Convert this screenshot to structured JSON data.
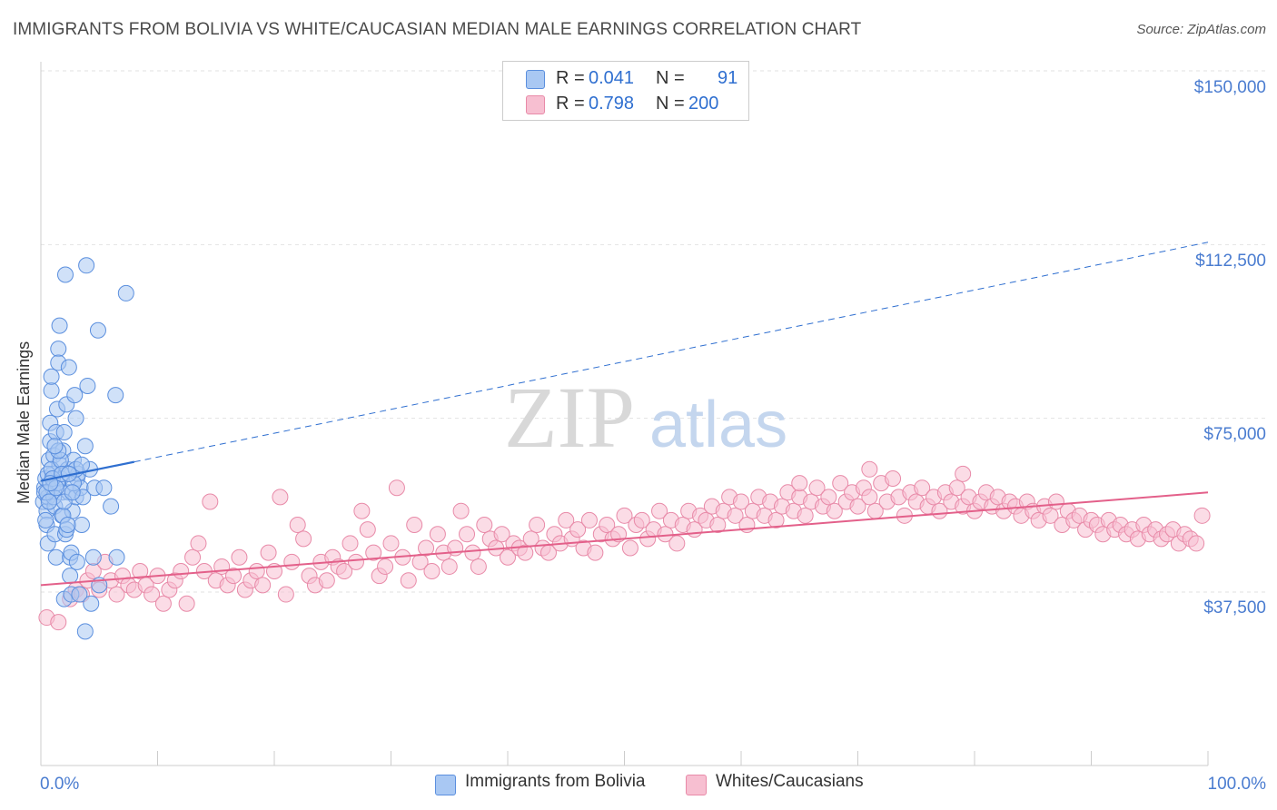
{
  "title": "IMMIGRANTS FROM BOLIVIA VS WHITE/CAUCASIAN MEDIAN MALE EARNINGS CORRELATION CHART",
  "source": "Source: ZipAtlas.com",
  "watermark": {
    "zip": "ZIP",
    "atlas": "atlas"
  },
  "legend": {
    "r_label": "R =",
    "n_label": "N =",
    "series": [
      {
        "r": "0.041",
        "n": "91",
        "color": "#a9c8f3",
        "edge": "#5b8fde"
      },
      {
        "r": "0.798",
        "n": "200",
        "color": "#f7bfd1",
        "edge": "#e88aa8"
      }
    ]
  },
  "bottom_legend": [
    "Immigrants from Bolivia",
    "Whites/Caucasians"
  ],
  "colors": {
    "blue": "#4a7cd0",
    "blue_line": "#2f6fd0",
    "pink_line": "#e3608a",
    "grid": "#e2e2e2",
    "axis": "#cccccc"
  },
  "chart_data": {
    "type": "scatter",
    "title": "IMMIGRANTS FROM BOLIVIA VS WHITE/CAUCASIAN MEDIAN MALE EARNINGS CORRELATION CHART",
    "xlabel": "",
    "ylabel": "Median Male Earnings",
    "xlim": [
      0,
      100
    ],
    "ylim": [
      15000,
      155000
    ],
    "x_tick_labels": [
      "0.0%",
      "100.0%"
    ],
    "y_ticks": [
      37500,
      75000,
      112500,
      150000
    ],
    "y_tick_labels": [
      "$37,500",
      "$75,000",
      "$112,500",
      "$150,000"
    ],
    "series": [
      {
        "name": "Immigrants from Bolivia",
        "r": 0.041,
        "n": 91,
        "trend": {
          "x0": 0,
          "y0": 61500,
          "x_solid_end": 8,
          "y_solid_end": 65600,
          "x1": 100,
          "y1": 113000
        },
        "points": [
          [
            0.2,
            57000
          ],
          [
            0.3,
            60000
          ],
          [
            0.4,
            62000
          ],
          [
            0.5,
            55000
          ],
          [
            0.5,
            52000
          ],
          [
            0.6,
            48000
          ],
          [
            0.6,
            58000
          ],
          [
            0.7,
            66000
          ],
          [
            0.8,
            70000
          ],
          [
            0.8,
            74000
          ],
          [
            0.9,
            81000
          ],
          [
            0.9,
            84000
          ],
          [
            1.0,
            60000
          ],
          [
            1.0,
            63000
          ],
          [
            1.1,
            67000
          ],
          [
            1.2,
            56000
          ],
          [
            1.2,
            50000
          ],
          [
            1.3,
            45000
          ],
          [
            1.3,
            72000
          ],
          [
            1.4,
            77000
          ],
          [
            1.5,
            90000
          ],
          [
            1.5,
            87000
          ],
          [
            1.6,
            95000
          ],
          [
            1.6,
            65000
          ],
          [
            1.7,
            62000
          ],
          [
            1.8,
            59000
          ],
          [
            1.8,
            54000
          ],
          [
            1.9,
            68000
          ],
          [
            2.0,
            72000
          ],
          [
            2.0,
            36000
          ],
          [
            2.1,
            50000
          ],
          [
            2.1,
            106000
          ],
          [
            2.2,
            78000
          ],
          [
            2.3,
            64000
          ],
          [
            2.4,
            59000
          ],
          [
            2.4,
            86000
          ],
          [
            2.5,
            45000
          ],
          [
            2.5,
            41000
          ],
          [
            2.6,
            37000
          ],
          [
            2.7,
            55000
          ],
          [
            2.8,
            66000
          ],
          [
            2.9,
            80000
          ],
          [
            3.0,
            75000
          ],
          [
            3.0,
            58000
          ],
          [
            3.1,
            62000
          ],
          [
            3.2,
            63000
          ],
          [
            3.3,
            37000
          ],
          [
            3.4,
            60000
          ],
          [
            3.5,
            52000
          ],
          [
            3.6,
            58000
          ],
          [
            3.8,
            29000
          ],
          [
            3.8,
            69000
          ],
          [
            3.9,
            108000
          ],
          [
            4.0,
            82000
          ],
          [
            4.2,
            64000
          ],
          [
            4.3,
            35000
          ],
          [
            4.5,
            45000
          ],
          [
            4.6,
            60000
          ],
          [
            4.9,
            94000
          ],
          [
            5.0,
            39000
          ],
          [
            5.4,
            60000
          ],
          [
            6.0,
            56000
          ],
          [
            6.4,
            80000
          ],
          [
            7.3,
            102000
          ],
          [
            0.3,
            59000
          ],
          [
            0.4,
            53000
          ],
          [
            0.6,
            63000
          ],
          [
            0.9,
            64000
          ],
          [
            1.1,
            58000
          ],
          [
            1.4,
            61000
          ],
          [
            1.7,
            66000
          ],
          [
            1.9,
            54000
          ],
          [
            2.2,
            51000
          ],
          [
            2.6,
            46000
          ],
          [
            2.8,
            61000
          ],
          [
            3.1,
            44000
          ],
          [
            0.5,
            59000
          ],
          [
            0.7,
            57000
          ],
          [
            1.0,
            62000
          ],
          [
            1.3,
            60000
          ],
          [
            1.5,
            68000
          ],
          [
            1.8,
            63000
          ],
          [
            2.0,
            57000
          ],
          [
            2.3,
            52000
          ],
          [
            2.7,
            59000
          ],
          [
            3.0,
            64000
          ],
          [
            3.5,
            65000
          ],
          [
            6.5,
            45000
          ],
          [
            1.2,
            69000
          ],
          [
            2.4,
            63000
          ],
          [
            0.8,
            61000
          ]
        ]
      },
      {
        "name": "Whites/Caucasians",
        "r": 0.798,
        "n": 200,
        "trend": {
          "x0": 0,
          "y0": 39000,
          "x1": 100,
          "y1": 59000
        },
        "points": [
          [
            0.5,
            32000
          ],
          [
            1.5,
            31000
          ],
          [
            2.5,
            36000
          ],
          [
            3.0,
            38000
          ],
          [
            3.5,
            37000
          ],
          [
            4.0,
            40000
          ],
          [
            4.5,
            42000
          ],
          [
            5.0,
            38000
          ],
          [
            5.5,
            44000
          ],
          [
            6.0,
            40000
          ],
          [
            6.5,
            37000
          ],
          [
            7.0,
            41000
          ],
          [
            7.5,
            39000
          ],
          [
            8.0,
            38000
          ],
          [
            8.5,
            42000
          ],
          [
            9.0,
            39000
          ],
          [
            9.5,
            37000
          ],
          [
            10.0,
            41000
          ],
          [
            10.5,
            35000
          ],
          [
            11.0,
            38000
          ],
          [
            11.5,
            40000
          ],
          [
            12.0,
            42000
          ],
          [
            12.5,
            35000
          ],
          [
            13.0,
            45000
          ],
          [
            13.5,
            48000
          ],
          [
            14.0,
            42000
          ],
          [
            14.5,
            57000
          ],
          [
            15.0,
            40000
          ],
          [
            15.5,
            43000
          ],
          [
            16.0,
            39000
          ],
          [
            16.5,
            41000
          ],
          [
            17.0,
            45000
          ],
          [
            17.5,
            38000
          ],
          [
            18.0,
            40000
          ],
          [
            18.5,
            42000
          ],
          [
            19.0,
            39000
          ],
          [
            19.5,
            46000
          ],
          [
            20.0,
            42000
          ],
          [
            20.5,
            58000
          ],
          [
            21.0,
            37000
          ],
          [
            21.5,
            44000
          ],
          [
            22.0,
            52000
          ],
          [
            22.5,
            49000
          ],
          [
            23.0,
            41000
          ],
          [
            23.5,
            39000
          ],
          [
            24.0,
            44000
          ],
          [
            24.5,
            40000
          ],
          [
            25.0,
            45000
          ],
          [
            25.5,
            43000
          ],
          [
            26.0,
            42000
          ],
          [
            26.5,
            48000
          ],
          [
            27.0,
            44000
          ],
          [
            27.5,
            55000
          ],
          [
            28.0,
            51000
          ],
          [
            28.5,
            46000
          ],
          [
            29.0,
            41000
          ],
          [
            29.5,
            43000
          ],
          [
            30.0,
            48000
          ],
          [
            30.5,
            60000
          ],
          [
            31.0,
            45000
          ],
          [
            31.5,
            40000
          ],
          [
            32.0,
            52000
          ],
          [
            32.5,
            44000
          ],
          [
            33.0,
            47000
          ],
          [
            33.5,
            42000
          ],
          [
            34.0,
            50000
          ],
          [
            34.5,
            46000
          ],
          [
            35.0,
            43000
          ],
          [
            35.5,
            47000
          ],
          [
            36.0,
            55000
          ],
          [
            36.5,
            50000
          ],
          [
            37.0,
            46000
          ],
          [
            37.5,
            43000
          ],
          [
            38.0,
            52000
          ],
          [
            38.5,
            49000
          ],
          [
            39.0,
            47000
          ],
          [
            39.5,
            50000
          ],
          [
            40.0,
            45000
          ],
          [
            40.5,
            48000
          ],
          [
            41.0,
            47000
          ],
          [
            41.5,
            46000
          ],
          [
            42.0,
            49000
          ],
          [
            42.5,
            52000
          ],
          [
            43.0,
            47000
          ],
          [
            43.5,
            46000
          ],
          [
            44.0,
            50000
          ],
          [
            44.5,
            48000
          ],
          [
            45.0,
            53000
          ],
          [
            45.5,
            49000
          ],
          [
            46.0,
            51000
          ],
          [
            46.5,
            47000
          ],
          [
            47.0,
            53000
          ],
          [
            47.5,
            46000
          ],
          [
            48.0,
            50000
          ],
          [
            48.5,
            52000
          ],
          [
            49.0,
            49000
          ],
          [
            49.5,
            50000
          ],
          [
            50.0,
            54000
          ],
          [
            50.5,
            47000
          ],
          [
            51.0,
            52000
          ],
          [
            51.5,
            53000
          ],
          [
            52.0,
            49000
          ],
          [
            52.5,
            51000
          ],
          [
            53.0,
            55000
          ],
          [
            53.5,
            50000
          ],
          [
            54.0,
            53000
          ],
          [
            54.5,
            48000
          ],
          [
            55.0,
            52000
          ],
          [
            55.5,
            55000
          ],
          [
            56.0,
            51000
          ],
          [
            56.5,
            54000
          ],
          [
            57.0,
            53000
          ],
          [
            57.5,
            56000
          ],
          [
            58.0,
            52000
          ],
          [
            58.5,
            55000
          ],
          [
            59.0,
            58000
          ],
          [
            59.5,
            54000
          ],
          [
            60.0,
            57000
          ],
          [
            60.5,
            52000
          ],
          [
            61.0,
            55000
          ],
          [
            61.5,
            58000
          ],
          [
            62.0,
            54000
          ],
          [
            62.5,
            57000
          ],
          [
            63.0,
            53000
          ],
          [
            63.5,
            56000
          ],
          [
            64.0,
            59000
          ],
          [
            64.5,
            55000
          ],
          [
            65.0,
            58000
          ],
          [
            65.5,
            54000
          ],
          [
            66.0,
            57000
          ],
          [
            66.5,
            60000
          ],
          [
            67.0,
            56000
          ],
          [
            67.5,
            58000
          ],
          [
            68.0,
            55000
          ],
          [
            68.5,
            61000
          ],
          [
            69.0,
            57000
          ],
          [
            69.5,
            59000
          ],
          [
            70.0,
            56000
          ],
          [
            70.5,
            60000
          ],
          [
            71.0,
            58000
          ],
          [
            71.5,
            55000
          ],
          [
            72.0,
            61000
          ],
          [
            72.5,
            57000
          ],
          [
            73.0,
            62000
          ],
          [
            73.5,
            58000
          ],
          [
            74.0,
            54000
          ],
          [
            74.5,
            59000
          ],
          [
            75.0,
            57000
          ],
          [
            75.5,
            60000
          ],
          [
            76.0,
            56000
          ],
          [
            76.5,
            58000
          ],
          [
            77.0,
            55000
          ],
          [
            77.5,
            59000
          ],
          [
            78.0,
            57000
          ],
          [
            78.5,
            60000
          ],
          [
            79.0,
            56000
          ],
          [
            79.5,
            58000
          ],
          [
            80.0,
            55000
          ],
          [
            80.5,
            57000
          ],
          [
            81.0,
            59000
          ],
          [
            81.5,
            56000
          ],
          [
            82.0,
            58000
          ],
          [
            82.5,
            55000
          ],
          [
            83.0,
            57000
          ],
          [
            83.5,
            56000
          ],
          [
            84.0,
            54000
          ],
          [
            84.5,
            57000
          ],
          [
            85.0,
            55000
          ],
          [
            85.5,
            53000
          ],
          [
            86.0,
            56000
          ],
          [
            86.5,
            54000
          ],
          [
            87.0,
            57000
          ],
          [
            87.5,
            52000
          ],
          [
            88.0,
            55000
          ],
          [
            88.5,
            53000
          ],
          [
            89.0,
            54000
          ],
          [
            89.5,
            51000
          ],
          [
            90.0,
            53000
          ],
          [
            90.5,
            52000
          ],
          [
            91.0,
            50000
          ],
          [
            91.5,
            53000
          ],
          [
            92.0,
            51000
          ],
          [
            92.5,
            52000
          ],
          [
            93.0,
            50000
          ],
          [
            93.5,
            51000
          ],
          [
            94.0,
            49000
          ],
          [
            94.5,
            52000
          ],
          [
            95.0,
            50000
          ],
          [
            95.5,
            51000
          ],
          [
            96.0,
            49000
          ],
          [
            96.5,
            50000
          ],
          [
            97.0,
            51000
          ],
          [
            97.5,
            48000
          ],
          [
            98.0,
            50000
          ],
          [
            98.5,
            49000
          ],
          [
            99.0,
            48000
          ],
          [
            99.5,
            54000
          ],
          [
            71.0,
            64000
          ],
          [
            79.0,
            63000
          ],
          [
            65.0,
            61000
          ]
        ]
      }
    ]
  }
}
